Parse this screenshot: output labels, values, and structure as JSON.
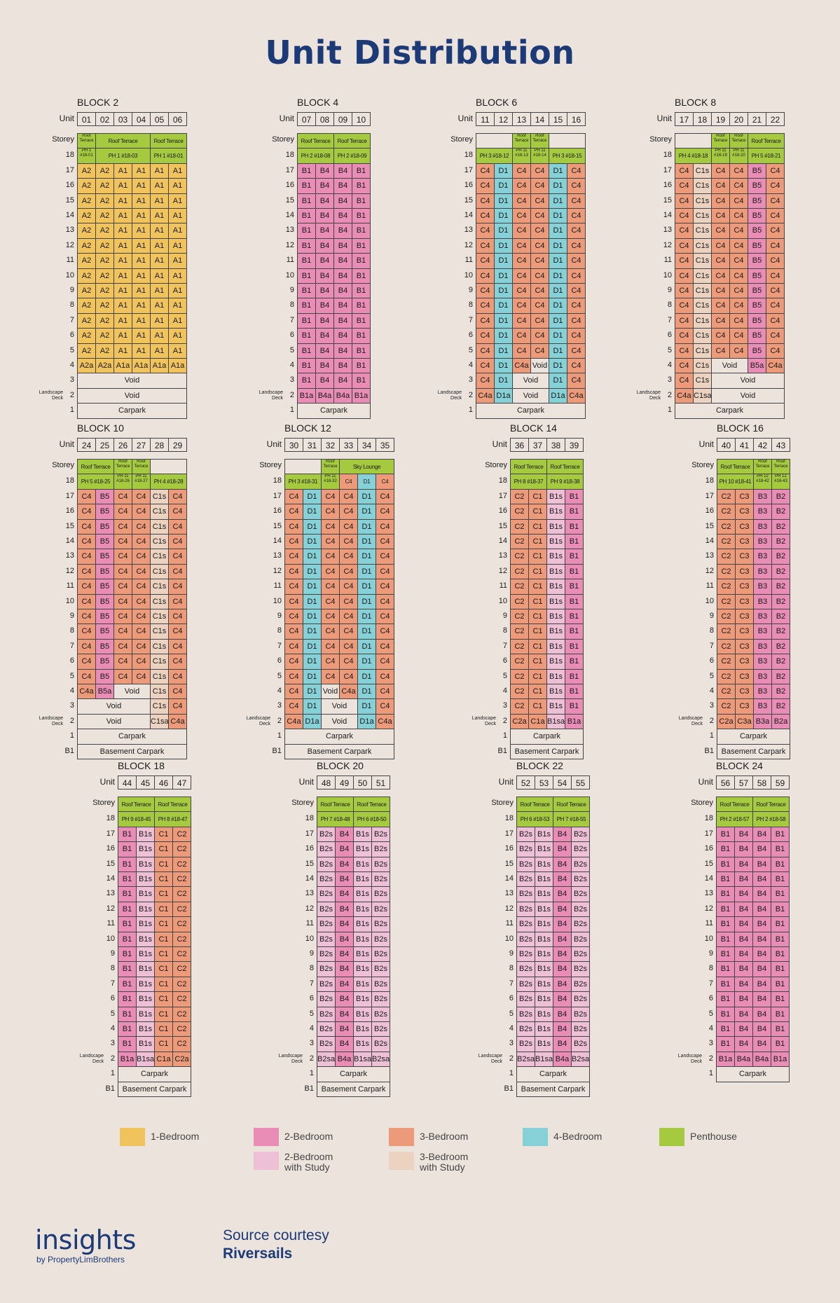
{
  "title": "Unit Distribution",
  "labels": {
    "unit": "Unit",
    "storey": "Storey",
    "landscape_deck": "Landscape\nDeck"
  },
  "colors": {
    "1-Bedroom": "#f0c35d",
    "2-Bedroom": "#e98db6",
    "2-Bedroom with Study": "#edc0d6",
    "3-Bedroom": "#ec9a79",
    "3-Bedroom with Study": "#ecd2c0",
    "4-Bedroom": "#86d1d8",
    "Penthouse": "#a5c93f"
  },
  "legend": [
    {
      "label": "1-Bedroom",
      "cls": "c1"
    },
    {
      "label": "2-Bedroom",
      "cls": "c2"
    },
    {
      "label": "2-Bedroom\nwith Study",
      "cls": "c2s"
    },
    {
      "label": "3-Bedroom",
      "cls": "c3"
    },
    {
      "label": "3-Bedroom\nwith Study",
      "cls": "c3s"
    },
    {
      "label": "4-Bedroom",
      "cls": "c4"
    },
    {
      "label": "Penthouse",
      "cls": "cph"
    }
  ],
  "blocks": [
    {
      "name": "BLOCK 2",
      "units": [
        "01",
        "02",
        "03",
        "04",
        "05",
        "06"
      ],
      "roof": [
        [
          "Roof Terrace",
          1
        ],
        [
          "Roof Terrace",
          3
        ],
        [
          "Roof Terrace",
          2
        ]
      ],
      "ph": [
        [
          "PH 1 #18-01",
          1
        ],
        [
          "PH 1 #18-03",
          3
        ],
        [
          "PH 1 #18-01",
          2
        ]
      ],
      "typical": [
        "A2",
        "A2",
        "A1",
        "A1",
        "A1",
        "A1"
      ],
      "s4": [
        [
          "A2a",
          1
        ],
        [
          "A2a",
          1
        ],
        [
          "A1a",
          1
        ],
        [
          "A1a",
          1
        ],
        [
          "A1a",
          1
        ],
        [
          "A1a",
          1
        ]
      ],
      "s3": [
        [
          "Void",
          6
        ]
      ],
      "s2": [
        [
          "Void",
          6
        ]
      ],
      "s1": "Carpark",
      "b1": null
    },
    {
      "name": "BLOCK 4",
      "units": [
        "07",
        "08",
        "09",
        "10"
      ],
      "roof": [
        [
          "Roof Terrace",
          2
        ],
        [
          "Roof Terrace",
          2
        ]
      ],
      "ph": [
        [
          "PH 2 #18-08",
          2
        ],
        [
          "PH 2 #18-09",
          2
        ]
      ],
      "typical": [
        "B1",
        "B4",
        "B4",
        "B1"
      ],
      "s4": [
        [
          "B1",
          1
        ],
        [
          "B4",
          1
        ],
        [
          "B4",
          1
        ],
        [
          "B1",
          1
        ]
      ],
      "s3": [
        [
          "B1",
          1
        ],
        [
          "B4",
          1
        ],
        [
          "B4",
          1
        ],
        [
          "B1",
          1
        ]
      ],
      "s2": [
        [
          "B1a",
          1
        ],
        [
          "B4a",
          1
        ],
        [
          "B4a",
          1
        ],
        [
          "B1a",
          1
        ]
      ],
      "s1": "Carpark",
      "b1": null
    },
    {
      "name": "BLOCK 6",
      "units": [
        "11",
        "12",
        "13",
        "14",
        "15",
        "16"
      ],
      "roof": [
        [
          null,
          2
        ],
        [
          "Roof Terrace",
          1
        ],
        [
          "Roof Terrace",
          1
        ],
        [
          null,
          2
        ]
      ],
      "ph": [
        [
          "PH 3 #18-12",
          2
        ],
        [
          "PH 11 #18-13",
          1
        ],
        [
          "PH 11 #18-14",
          1
        ],
        [
          "PH 3 #18-15",
          2
        ]
      ],
      "typical": [
        "C4",
        "D1",
        "C4",
        "C4",
        "D1",
        "C4"
      ],
      "s4": [
        [
          "C4",
          1
        ],
        [
          "D1",
          1
        ],
        [
          "C4a",
          1
        ],
        [
          "Void",
          1
        ],
        [
          "D1",
          1
        ],
        [
          "C4",
          1
        ]
      ],
      "s3": [
        [
          "C4",
          1
        ],
        [
          "D1",
          1
        ],
        [
          "Void",
          2
        ],
        [
          "D1",
          1
        ],
        [
          "C4",
          1
        ]
      ],
      "s2": [
        [
          "C4a",
          1
        ],
        [
          "D1a",
          1
        ],
        [
          "Void",
          2
        ],
        [
          "D1a",
          1
        ],
        [
          "C4a",
          1
        ]
      ],
      "s1": "Carpark",
      "b1": null
    },
    {
      "name": "BLOCK 8",
      "units": [
        "17",
        "18",
        "19",
        "20",
        "21",
        "22"
      ],
      "roof": [
        [
          null,
          2
        ],
        [
          "Roof Terrace",
          1
        ],
        [
          "Roof Terrace",
          1
        ],
        [
          "Roof Terrace",
          2
        ]
      ],
      "ph": [
        [
          "PH 4 #18-18",
          2
        ],
        [
          "PH 11 #18-19",
          1
        ],
        [
          "PH 11 #18-20",
          1
        ],
        [
          "PH 5 #18-21",
          2
        ]
      ],
      "typical": [
        "C4",
        "C1s",
        "C4",
        "C4",
        "B5",
        "C4"
      ],
      "s4": [
        [
          "C4",
          1
        ],
        [
          "C1s",
          1
        ],
        [
          "Void",
          2
        ],
        [
          "B5a",
          1
        ],
        [
          "C4a",
          1
        ]
      ],
      "s3": [
        [
          "C4",
          1
        ],
        [
          "C1s",
          1
        ],
        [
          "Void",
          4
        ]
      ],
      "s2": [
        [
          "C4a",
          1
        ],
        [
          "C1sa",
          1
        ],
        [
          "Void",
          4
        ]
      ],
      "s1": "Carpark",
      "b1": null
    },
    {
      "name": "BLOCK 10",
      "units": [
        "24",
        "25",
        "26",
        "27",
        "28",
        "29"
      ],
      "roof": [
        [
          "Roof Terrace",
          2
        ],
        [
          "Roof Terrace",
          1
        ],
        [
          "Roof Terrace",
          1
        ],
        [
          null,
          2
        ]
      ],
      "ph": [
        [
          "PH 5 #18-25",
          2
        ],
        [
          "PH 11 #18-26",
          1
        ],
        [
          "PH 11 #18-27",
          1
        ],
        [
          "PH 4 #18-28",
          2
        ]
      ],
      "typical": [
        "C4",
        "B5",
        "C4",
        "C4",
        "C1s",
        "C4"
      ],
      "s4": [
        [
          "C4a",
          1
        ],
        [
          "B5a",
          1
        ],
        [
          "Void",
          2
        ],
        [
          "C1s",
          1
        ],
        [
          "C4",
          1
        ]
      ],
      "s3": [
        [
          "Void",
          4
        ],
        [
          "C1s",
          1
        ],
        [
          "C4",
          1
        ]
      ],
      "s2": [
        [
          "Void",
          4
        ],
        [
          "C1sa",
          1
        ],
        [
          "C4a",
          1
        ]
      ],
      "s1": "Carpark",
      "b1": "Basement Carpark"
    },
    {
      "name": "BLOCK 12",
      "units": [
        "30",
        "31",
        "32",
        "33",
        "34",
        "35"
      ],
      "roof": [
        [
          null,
          2
        ],
        [
          "Roof Terrace",
          1
        ],
        [
          "Sky Lounge",
          3
        ]
      ],
      "ph": [
        [
          "PH 3 #18-31",
          2
        ],
        [
          "PH 11 #18-32",
          1
        ],
        [
          "C4",
          1
        ],
        [
          "D1",
          1
        ],
        [
          "C4",
          1
        ]
      ],
      "typical": [
        "C4",
        "D1",
        "C4",
        "C4",
        "D1",
        "C4"
      ],
      "s4": [
        [
          "C4",
          1
        ],
        [
          "D1",
          1
        ],
        [
          "Void",
          1
        ],
        [
          "C4a",
          1
        ],
        [
          "D1",
          1
        ],
        [
          "C4",
          1
        ]
      ],
      "s3": [
        [
          "C4",
          1
        ],
        [
          "D1",
          1
        ],
        [
          "Void",
          2
        ],
        [
          "D1",
          1
        ],
        [
          "C4",
          1
        ]
      ],
      "s2": [
        [
          "C4a",
          1
        ],
        [
          "D1a",
          1
        ],
        [
          "Void",
          2
        ],
        [
          "D1a",
          1
        ],
        [
          "C4a",
          1
        ]
      ],
      "s1": "Carpark",
      "b1": "Basement Carpark"
    },
    {
      "name": "BLOCK 14",
      "units": [
        "36",
        "37",
        "38",
        "39"
      ],
      "roof": [
        [
          "Roof Terrace",
          2
        ],
        [
          "Roof Terrace",
          2
        ]
      ],
      "ph": [
        [
          "PH 8 #18-37",
          2
        ],
        [
          "PH 9 #18-38",
          2
        ]
      ],
      "typical": [
        "C2",
        "C1",
        "B1s",
        "B1"
      ],
      "s4": [
        [
          "C2",
          1
        ],
        [
          "C1",
          1
        ],
        [
          "B1s",
          1
        ],
        [
          "B1",
          1
        ]
      ],
      "s3": [
        [
          "C2",
          1
        ],
        [
          "C1",
          1
        ],
        [
          "B1s",
          1
        ],
        [
          "B1",
          1
        ]
      ],
      "s2": [
        [
          "C2a",
          1
        ],
        [
          "C1a",
          1
        ],
        [
          "B1sa",
          1
        ],
        [
          "B1a",
          1
        ]
      ],
      "s1": "Carpark",
      "b1": "Basement Carpark"
    },
    {
      "name": "BLOCK 16",
      "units": [
        "40",
        "41",
        "42",
        "43"
      ],
      "roof": [
        [
          "Roof Terrace",
          2
        ],
        [
          "Roof Terrace",
          1
        ],
        [
          "Roof Terrace",
          1
        ]
      ],
      "ph": [
        [
          "PH 10 #18-41",
          2
        ],
        [
          "PH 12 #18-42",
          1
        ],
        [
          "PH 12 #18-43",
          1
        ]
      ],
      "typical": [
        "C2",
        "C3",
        "B3",
        "B2"
      ],
      "s4": [
        [
          "C2",
          1
        ],
        [
          "C3",
          1
        ],
        [
          "B3",
          1
        ],
        [
          "B2",
          1
        ]
      ],
      "s3": [
        [
          "C2",
          1
        ],
        [
          "C3",
          1
        ],
        [
          "B3",
          1
        ],
        [
          "B2",
          1
        ]
      ],
      "s2": [
        [
          "C2a",
          1
        ],
        [
          "C3a",
          1
        ],
        [
          "B3a",
          1
        ],
        [
          "B2a",
          1
        ]
      ],
      "s1": "Carpark",
      "b1": "Basement Carpark"
    },
    {
      "name": "BLOCK 18",
      "units": [
        "44",
        "45",
        "46",
        "47"
      ],
      "roof": [
        [
          "Roof Terrace",
          2
        ],
        [
          "Roof Terrace",
          2
        ]
      ],
      "ph": [
        [
          "PH 9 #18-45",
          2
        ],
        [
          "PH 8 #18-47",
          2
        ]
      ],
      "typical": [
        "B1",
        "B1s",
        "C1",
        "C2"
      ],
      "s4": [
        [
          "B1",
          1
        ],
        [
          "B1s",
          1
        ],
        [
          "C1",
          1
        ],
        [
          "C2",
          1
        ]
      ],
      "s3": [
        [
          "B1",
          1
        ],
        [
          "B1s",
          1
        ],
        [
          "C1",
          1
        ],
        [
          "C2",
          1
        ]
      ],
      "s2": [
        [
          "B1a",
          1
        ],
        [
          "B1sa",
          1
        ],
        [
          "C1a",
          1
        ],
        [
          "C2a",
          1
        ]
      ],
      "s1": "Carpark",
      "b1": "Basement Carpark"
    },
    {
      "name": "BLOCK 20",
      "units": [
        "48",
        "49",
        "50",
        "51"
      ],
      "roof": [
        [
          "Roof Terrace",
          2
        ],
        [
          "Roof Terrace",
          2
        ]
      ],
      "ph": [
        [
          "PH 7 #18-48",
          2
        ],
        [
          "PH 6 #18-50",
          2
        ]
      ],
      "typical": [
        "B2s",
        "B4",
        "B1s",
        "B2s"
      ],
      "s4": [
        [
          "B2s",
          1
        ],
        [
          "B4",
          1
        ],
        [
          "B1s",
          1
        ],
        [
          "B2s",
          1
        ]
      ],
      "s3": [
        [
          "B2s",
          1
        ],
        [
          "B4",
          1
        ],
        [
          "B1s",
          1
        ],
        [
          "B2s",
          1
        ]
      ],
      "s2": [
        [
          "B2sa",
          1
        ],
        [
          "B4a",
          1
        ],
        [
          "B1sa",
          1
        ],
        [
          "B2sa",
          1
        ]
      ],
      "s1": "Carpark",
      "b1": "Basement Carpark"
    },
    {
      "name": "BLOCK 22",
      "units": [
        "52",
        "53",
        "54",
        "55"
      ],
      "roof": [
        [
          "Roof Terrace",
          2
        ],
        [
          "Roof Terrace",
          2
        ]
      ],
      "ph": [
        [
          "PH 6 #18-53",
          2
        ],
        [
          "PH 7 #18-55",
          2
        ]
      ],
      "typical": [
        "B2s",
        "B1s",
        "B4",
        "B2s"
      ],
      "s4": [
        [
          "B2s",
          1
        ],
        [
          "B1s",
          1
        ],
        [
          "B4",
          1
        ],
        [
          "B2s",
          1
        ]
      ],
      "s3": [
        [
          "B2s",
          1
        ],
        [
          "B1s",
          1
        ],
        [
          "B4",
          1
        ],
        [
          "B2s",
          1
        ]
      ],
      "s2": [
        [
          "B2sa",
          1
        ],
        [
          "B1sa",
          1
        ],
        [
          "B4a",
          1
        ],
        [
          "B2sa",
          1
        ]
      ],
      "s1": "Carpark",
      "b1": "Basement Carpark"
    },
    {
      "name": "BLOCK 24",
      "units": [
        "56",
        "57",
        "58",
        "59"
      ],
      "roof": [
        [
          "Roof Terrace",
          2
        ],
        [
          "Roof Terrace",
          2
        ]
      ],
      "ph": [
        [
          "PH 2 #18-57",
          2
        ],
        [
          "PH 2 #18-58",
          2
        ]
      ],
      "typical": [
        "B1",
        "B4",
        "B4",
        "B1"
      ],
      "s4": [
        [
          "B1",
          1
        ],
        [
          "B4",
          1
        ],
        [
          "B4",
          1
        ],
        [
          "B1",
          1
        ]
      ],
      "s3": [
        [
          "B1",
          1
        ],
        [
          "B4",
          1
        ],
        [
          "B4",
          1
        ],
        [
          "B1",
          1
        ]
      ],
      "s2": [
        [
          "B1a",
          1
        ],
        [
          "B4a",
          1
        ],
        [
          "B4a",
          1
        ],
        [
          "B1a",
          1
        ]
      ],
      "s1": "Carpark",
      "b1": null
    }
  ],
  "footer": {
    "logo": "insights",
    "logo_sub": "by PropertyLimBrothers",
    "source_label": "Source courtesy",
    "source_name": "Riversails"
  }
}
